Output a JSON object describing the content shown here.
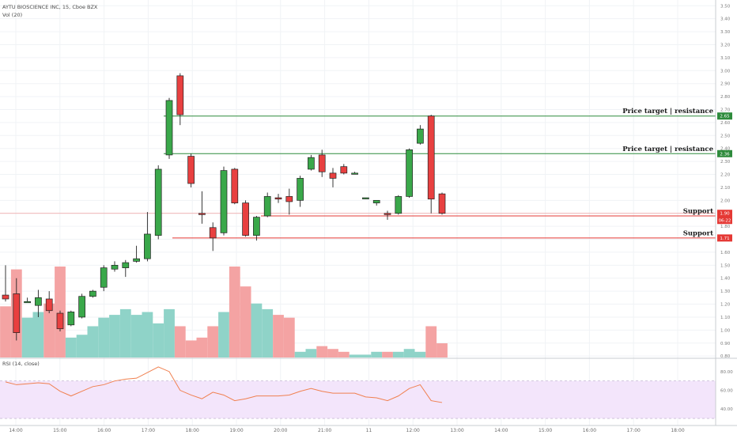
{
  "header": {
    "symbol_line": "AYTU BIOSCIENCE INC, 15, Cboe BZX",
    "volume_label": "Vol (20)",
    "rsi_label": "RSI (14, close)"
  },
  "price_axis": {
    "ticks": [
      "3.50",
      "3.40",
      "3.30",
      "3.20",
      "3.10",
      "3.00",
      "2.90",
      "2.80",
      "2.70",
      "2.60",
      "2.50",
      "2.40",
      "2.30",
      "2.20",
      "2.10",
      "2.00",
      "1.90",
      "1.80",
      "1.70",
      "1.60",
      "1.50",
      "1.40",
      "1.30",
      "1.20",
      "1.10",
      "1.00",
      "0.90",
      "0.80"
    ]
  },
  "rsi_axis": {
    "ticks": [
      "80.00",
      "60.00",
      "40.00"
    ]
  },
  "time_axis": {
    "labels": [
      "14:00",
      "15:00",
      "16:00",
      "17:00",
      "18:00",
      "19:00",
      "20:00",
      "21:00",
      "11",
      "12:00",
      "13:00",
      "14:00",
      "15:00",
      "16:00",
      "17:00",
      "18:00"
    ]
  },
  "annotations": [
    {
      "text": "Price target | resistance",
      "price": 2.65,
      "badge": "2.65",
      "color": "#2e8b3c"
    },
    {
      "text": "Price target | resistance",
      "price": 2.36,
      "badge": "2.36",
      "color": "#2e8b3c"
    },
    {
      "text": "Support",
      "price": 1.88,
      "badge": "1.88",
      "color": "#e53935"
    },
    {
      "text": "Support",
      "price": 1.71,
      "badge": "1.71",
      "color": "#e53935"
    }
  ],
  "current_price": {
    "badge": "1.90",
    "countdown": "06:22",
    "color": "#e53935"
  },
  "colors": {
    "up": "#3aa84a",
    "down": "#e84040",
    "vol_up": "#8fd3c8",
    "vol_down": "#f4a3a3",
    "rsi_line": "#f08050",
    "rsi_band": "#f3e5fb"
  },
  "chart_data": {
    "type": "candlestick",
    "ylim": [
      0.74,
      3.52
    ],
    "rsi_ylim": [
      25,
      90
    ],
    "rsi_band": [
      30,
      70
    ],
    "candles": [
      {
        "o": 1.27,
        "h": 1.5,
        "l": 1.22,
        "c": 1.24,
        "v": 1.8
      },
      {
        "o": 1.28,
        "h": 1.4,
        "l": 0.92,
        "c": 0.98,
        "v": 3.1
      },
      {
        "o": 1.22,
        "h": 1.25,
        "l": 1.21,
        "c": 1.22,
        "v": 1.4
      },
      {
        "o": 1.19,
        "h": 1.31,
        "l": 1.1,
        "c": 1.25,
        "v": 1.6
      },
      {
        "o": 1.24,
        "h": 1.3,
        "l": 1.13,
        "c": 1.15,
        "v": 1.9
      },
      {
        "o": 1.13,
        "h": 1.15,
        "l": 0.99,
        "c": 1.01,
        "v": 3.2
      },
      {
        "o": 1.04,
        "h": 1.15,
        "l": 1.03,
        "c": 1.14,
        "v": 0.7
      },
      {
        "o": 1.1,
        "h": 1.28,
        "l": 1.09,
        "c": 1.26,
        "v": 0.8
      },
      {
        "o": 1.26,
        "h": 1.31,
        "l": 1.25,
        "c": 1.3,
        "v": 1.1
      },
      {
        "o": 1.33,
        "h": 1.5,
        "l": 1.3,
        "c": 1.48,
        "v": 1.4
      },
      {
        "o": 1.47,
        "h": 1.53,
        "l": 1.45,
        "c": 1.5,
        "v": 1.5
      },
      {
        "o": 1.48,
        "h": 1.54,
        "l": 1.41,
        "c": 1.52,
        "v": 1.7
      },
      {
        "o": 1.53,
        "h": 1.65,
        "l": 1.52,
        "c": 1.55,
        "v": 1.5
      },
      {
        "o": 1.55,
        "h": 1.91,
        "l": 1.53,
        "c": 1.74,
        "v": 1.6
      },
      {
        "o": 1.73,
        "h": 2.27,
        "l": 1.7,
        "c": 2.24,
        "v": 1.2
      },
      {
        "o": 2.35,
        "h": 2.79,
        "l": 2.32,
        "c": 2.77,
        "v": 1.7
      },
      {
        "o": 2.96,
        "h": 2.98,
        "l": 2.58,
        "c": 2.66,
        "v": 1.1
      },
      {
        "o": 2.34,
        "h": 2.36,
        "l": 2.1,
        "c": 2.13,
        "v": 0.6
      },
      {
        "o": 1.9,
        "h": 2.07,
        "l": 1.82,
        "c": 1.89,
        "v": 0.7
      },
      {
        "o": 1.79,
        "h": 1.83,
        "l": 1.61,
        "c": 1.71,
        "v": 1.1
      },
      {
        "o": 1.75,
        "h": 2.26,
        "l": 1.73,
        "c": 2.23,
        "v": 1.6
      },
      {
        "o": 2.24,
        "h": 2.25,
        "l": 1.97,
        "c": 1.98,
        "v": 3.2
      },
      {
        "o": 1.98,
        "h": 2.0,
        "l": 1.72,
        "c": 1.73,
        "v": 2.5
      },
      {
        "o": 1.73,
        "h": 1.88,
        "l": 1.69,
        "c": 1.87,
        "v": 1.9
      },
      {
        "o": 1.88,
        "h": 2.06,
        "l": 1.87,
        "c": 2.03,
        "v": 1.7
      },
      {
        "o": 2.02,
        "h": 2.05,
        "l": 1.98,
        "c": 2.01,
        "v": 1.5
      },
      {
        "o": 2.03,
        "h": 2.09,
        "l": 1.89,
        "c": 1.99,
        "v": 1.4
      },
      {
        "o": 2.0,
        "h": 2.19,
        "l": 1.95,
        "c": 2.17,
        "v": 0.2
      },
      {
        "o": 2.24,
        "h": 2.35,
        "l": 2.23,
        "c": 2.33,
        "v": 0.3
      },
      {
        "o": 2.35,
        "h": 2.39,
        "l": 2.18,
        "c": 2.22,
        "v": 0.4
      },
      {
        "o": 2.21,
        "h": 2.25,
        "l": 2.1,
        "c": 2.17,
        "v": 0.3
      },
      {
        "o": 2.26,
        "h": 2.28,
        "l": 2.2,
        "c": 2.21,
        "v": 0.2
      },
      {
        "o": 2.21,
        "h": 2.22,
        "l": 2.2,
        "c": 2.21,
        "v": 0.1
      },
      {
        "o": 2.02,
        "h": 2.02,
        "l": 2.01,
        "c": 2.02,
        "v": 0.1
      },
      {
        "o": 1.98,
        "h": 2.0,
        "l": 1.96,
        "c": 2.0,
        "v": 0.2
      },
      {
        "o": 1.9,
        "h": 1.92,
        "l": 1.85,
        "c": 1.89,
        "v": 0.2
      },
      {
        "o": 1.9,
        "h": 2.04,
        "l": 1.89,
        "c": 2.03,
        "v": 0.2
      },
      {
        "o": 2.03,
        "h": 2.4,
        "l": 2.02,
        "c": 2.39,
        "v": 0.3
      },
      {
        "o": 2.44,
        "h": 2.58,
        "l": 2.43,
        "c": 2.55,
        "v": 0.2
      },
      {
        "o": 2.65,
        "h": 2.66,
        "l": 1.9,
        "c": 2.01,
        "v": 1.1
      },
      {
        "o": 2.05,
        "h": 2.06,
        "l": 1.89,
        "c": 1.9,
        "v": 0.5
      }
    ],
    "rsi": [
      69,
      66,
      67,
      68,
      67,
      59,
      54,
      59,
      64,
      66,
      70,
      72,
      73,
      79,
      85,
      80,
      60,
      55,
      51,
      58,
      55,
      49,
      51,
      54,
      54,
      54,
      55,
      59,
      62,
      59,
      57,
      57,
      57,
      53,
      52,
      49,
      54,
      62,
      66,
      49,
      47
    ]
  }
}
